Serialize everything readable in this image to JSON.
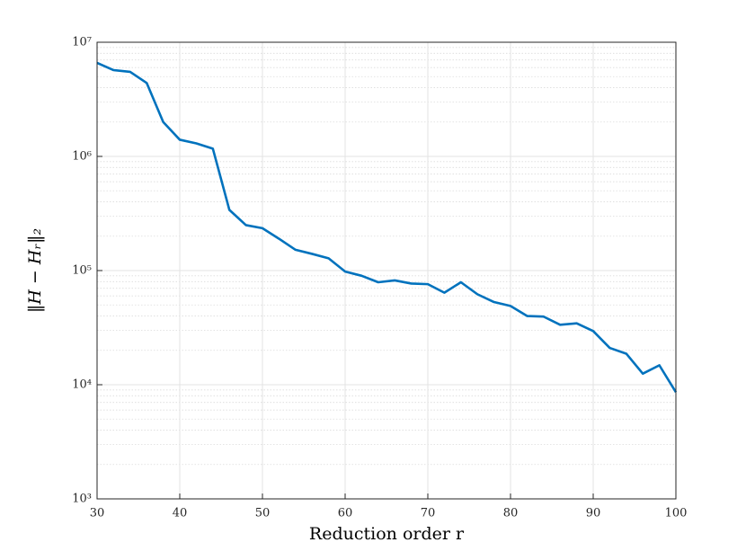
{
  "chart_data": {
    "type": "line",
    "xlabel": "Reduction order r",
    "ylabel": "‖H − Hᵣ‖₂",
    "x": [
      30,
      32,
      34,
      36,
      38,
      40,
      42,
      44,
      46,
      48,
      50,
      52,
      54,
      56,
      58,
      60,
      62,
      64,
      66,
      68,
      70,
      72,
      74,
      76,
      78,
      80,
      82,
      84,
      86,
      88,
      90,
      92,
      94,
      96,
      98,
      100
    ],
    "series": [
      {
        "color": "#0072bd",
        "values": [
          6600000,
          5700000,
          5500000,
          4400000,
          2000000,
          1400000,
          1300000,
          1170000,
          340000,
          250000,
          235000,
          190000,
          152000,
          140000,
          128000,
          98000,
          90000,
          79000,
          82000,
          77000,
          76000,
          64000,
          79000,
          62000,
          53000,
          49000,
          40000,
          39500,
          33500,
          34500,
          29500,
          21000,
          18700,
          12500,
          14800,
          8600
        ]
      }
    ],
    "xlim": [
      30,
      100
    ],
    "xticks": [
      30,
      40,
      50,
      60,
      70,
      80,
      90,
      100
    ],
    "ylim": [
      1000,
      10000000
    ],
    "yticks": [
      {
        "value": 1000,
        "label": "10³"
      },
      {
        "value": 10000,
        "label": "10⁴"
      },
      {
        "value": 100000,
        "label": "10⁵"
      },
      {
        "value": 1000000,
        "label": "10⁶"
      },
      {
        "value": 10000000,
        "label": "10⁷"
      }
    ],
    "log_y": true,
    "grid": true
  }
}
